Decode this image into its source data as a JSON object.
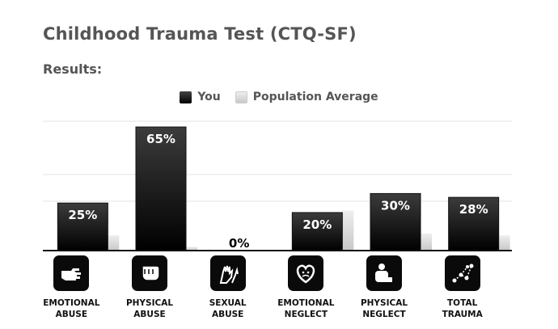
{
  "header": {
    "title": "Childhood Trauma Test (CTQ-SF)",
    "results_label": "Results:"
  },
  "legend": {
    "you": "You",
    "avg": "Population Average"
  },
  "colors": {
    "you_top": "#3c3c3c",
    "you_bottom": "#000000",
    "avg_top": "#eeeeee",
    "avg_bottom": "#c8c8c8",
    "grid": "#e3e3e3",
    "axis": "#111111"
  },
  "chart_data": {
    "type": "bar",
    "title": "",
    "categories": [
      "EMOTIONAL ABUSE",
      "PHYSICAL ABUSE",
      "SEXUAL ABUSE",
      "EMOTIONAL NEGLECT",
      "PHYSICAL NEGLECT",
      "TOTAL TRAUMA"
    ],
    "category_lines": [
      [
        "EMOTIONAL",
        "ABUSE"
      ],
      [
        "PHYSICAL",
        "ABUSE"
      ],
      [
        "SEXUAL",
        "ABUSE"
      ],
      [
        "EMOTIONAL",
        "NEGLECT"
      ],
      [
        "PHYSICAL",
        "NEGLECT"
      ],
      [
        "TOTAL",
        "TRAUMA"
      ]
    ],
    "icons": [
      "pointing-hand-icon",
      "fist-icon",
      "raised-hands-icon",
      "heart-face-icon",
      "curled-figure-icon",
      "network-graph-icon"
    ],
    "series": [
      {
        "name": "You",
        "values": [
          25,
          65,
          0,
          20,
          30,
          28
        ],
        "labels": [
          "25%",
          "65%",
          "0%",
          "20%",
          "30%",
          "28%"
        ]
      },
      {
        "name": "Population Average",
        "values": [
          8,
          2,
          0,
          21,
          9,
          8
        ]
      }
    ],
    "ylim": [
      0,
      68
    ],
    "gridlines": [
      0,
      26,
      40
    ],
    "grid": true,
    "legend_position": "top-center"
  }
}
